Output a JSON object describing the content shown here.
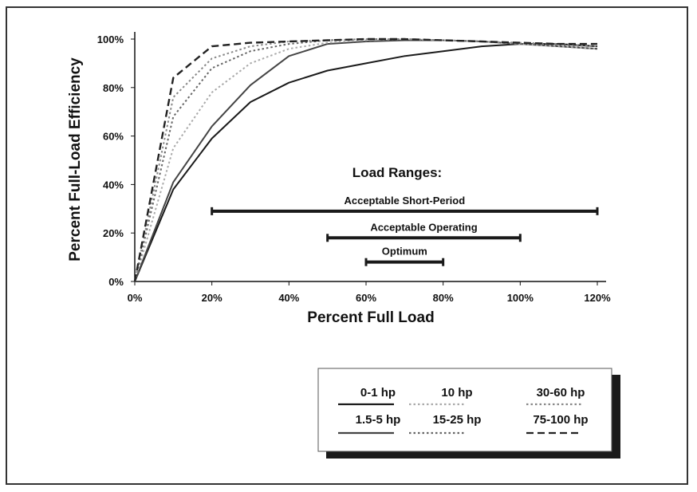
{
  "chart_data": {
    "type": "line",
    "title": "",
    "xlabel": "Percent Full Load",
    "ylabel": "Percent Full-Load Efficiency",
    "xlim": [
      0,
      120
    ],
    "ylim": [
      0,
      105
    ],
    "x_ticks": [
      "0%",
      "20%",
      "40%",
      "60%",
      "80%",
      "100%",
      "120%"
    ],
    "y_ticks": [
      "0%",
      "20%",
      "40%",
      "60%",
      "80%",
      "100%"
    ],
    "grid": false,
    "legend_position": "bottom-right",
    "series": [
      {
        "name": "0-1 hp",
        "color": "#1a1a1a",
        "style": "solid",
        "x": [
          0,
          10,
          20,
          30,
          40,
          50,
          60,
          70,
          80,
          90,
          100,
          110,
          120
        ],
        "y": [
          0,
          38,
          59,
          74,
          82,
          87,
          90,
          93,
          95,
          97,
          98,
          98,
          97
        ]
      },
      {
        "name": "1.5-5 hp",
        "color": "#444444",
        "style": "solid",
        "x": [
          0,
          10,
          20,
          30,
          40,
          50,
          60,
          70,
          80,
          90,
          100,
          110,
          120
        ],
        "y": [
          0,
          41,
          64,
          81,
          93,
          98,
          99,
          99.5,
          99.5,
          99,
          98,
          97,
          96
        ]
      },
      {
        "name": "10 hp",
        "color": "#aaaaaa",
        "style": "dotted",
        "x": [
          0,
          10,
          20,
          30,
          40,
          50,
          60,
          70,
          80,
          90,
          100,
          110,
          120
        ],
        "y": [
          0,
          55,
          78,
          90,
          96,
          98.5,
          99.5,
          100,
          99.5,
          99,
          98,
          97,
          96
        ]
      },
      {
        "name": "15-25 hp",
        "color": "#666666",
        "style": "dotted",
        "x": [
          0,
          10,
          20,
          30,
          40,
          50,
          60,
          70,
          80,
          90,
          100,
          110,
          120
        ],
        "y": [
          0,
          68,
          88,
          95,
          98,
          99.5,
          100,
          100,
          99.5,
          99,
          98,
          97.5,
          97
        ]
      },
      {
        "name": "30-60 hp",
        "color": "#888888",
        "style": "dotted",
        "x": [
          0,
          10,
          20,
          30,
          40,
          50,
          60,
          70,
          80,
          90,
          100,
          110,
          120
        ],
        "y": [
          0,
          76,
          92,
          97,
          99,
          99.5,
          100,
          100,
          99.5,
          99,
          98.5,
          98,
          97
        ]
      },
      {
        "name": "75-100 hp",
        "color": "#222222",
        "style": "dashed",
        "x": [
          0,
          10,
          20,
          30,
          40,
          50,
          60,
          70,
          80,
          90,
          100,
          110,
          120
        ],
        "y": [
          0,
          84,
          97,
          98.5,
          99,
          99.5,
          100,
          100,
          99.5,
          99,
          98.5,
          98,
          98
        ]
      }
    ],
    "annotations_title": "Load Ranges:",
    "load_ranges": [
      {
        "label": "Acceptable Short-Period",
        "x_start": 20,
        "x_end": 120,
        "y": 29
      },
      {
        "label": "Acceptable Operating",
        "x_start": 50,
        "x_end": 100,
        "y": 18
      },
      {
        "label": "Optimum",
        "x_start": 60,
        "x_end": 80,
        "y": 8
      }
    ]
  }
}
